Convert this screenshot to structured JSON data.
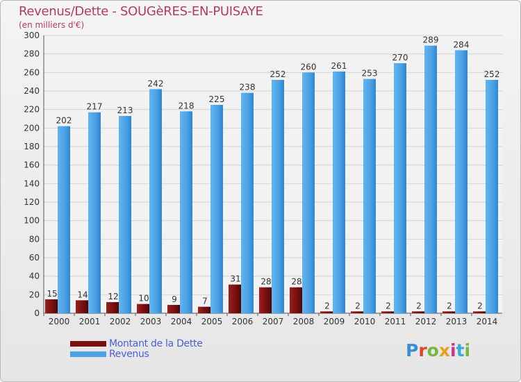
{
  "header": {
    "title": "Revenus/Dette - SOUGèRES-EN-PUISAYE",
    "subtitle": "(en milliers d'€)"
  },
  "legend": {
    "dette_label": "Montant de la Dette",
    "revenus_label": "Revenus"
  },
  "logo": {
    "text": "Proxiti",
    "letters": [
      "P",
      "r",
      "o",
      "x",
      "i",
      "t",
      "i"
    ],
    "colors": [
      "#3a8fd6",
      "#d94a2a",
      "#7ab83a",
      "#e8a020",
      "#c23a8a",
      "#3aaad6",
      "#7ab83a"
    ]
  },
  "colors": {
    "dette": "#7a0f0f",
    "revenus": "#4da3e6",
    "title": "#b03a6e",
    "legend_text": "#4a5fd0"
  },
  "chart_data": {
    "type": "bar",
    "title": "Revenus/Dette - SOUGèRES-EN-PUISAYE",
    "subtitle": "(en milliers d'€)",
    "categories": [
      "2000",
      "2001",
      "2002",
      "2003",
      "2004",
      "2005",
      "2006",
      "2007",
      "2008",
      "2009",
      "2010",
      "2011",
      "2012",
      "2013",
      "2014"
    ],
    "series": [
      {
        "name": "Montant de la Dette",
        "values": [
          15,
          14,
          12,
          10,
          9,
          7,
          31,
          28,
          28,
          2,
          2,
          2,
          2,
          2,
          2
        ]
      },
      {
        "name": "Revenus",
        "values": [
          202,
          217,
          213,
          242,
          218,
          225,
          238,
          252,
          260,
          261,
          253,
          270,
          289,
          284,
          252
        ]
      }
    ],
    "ylim": [
      0,
      300
    ],
    "yticks": [
      0,
      20,
      40,
      60,
      80,
      100,
      120,
      140,
      160,
      180,
      200,
      220,
      240,
      260,
      280,
      300
    ],
    "grid": true,
    "legend_position": "bottom-left"
  }
}
